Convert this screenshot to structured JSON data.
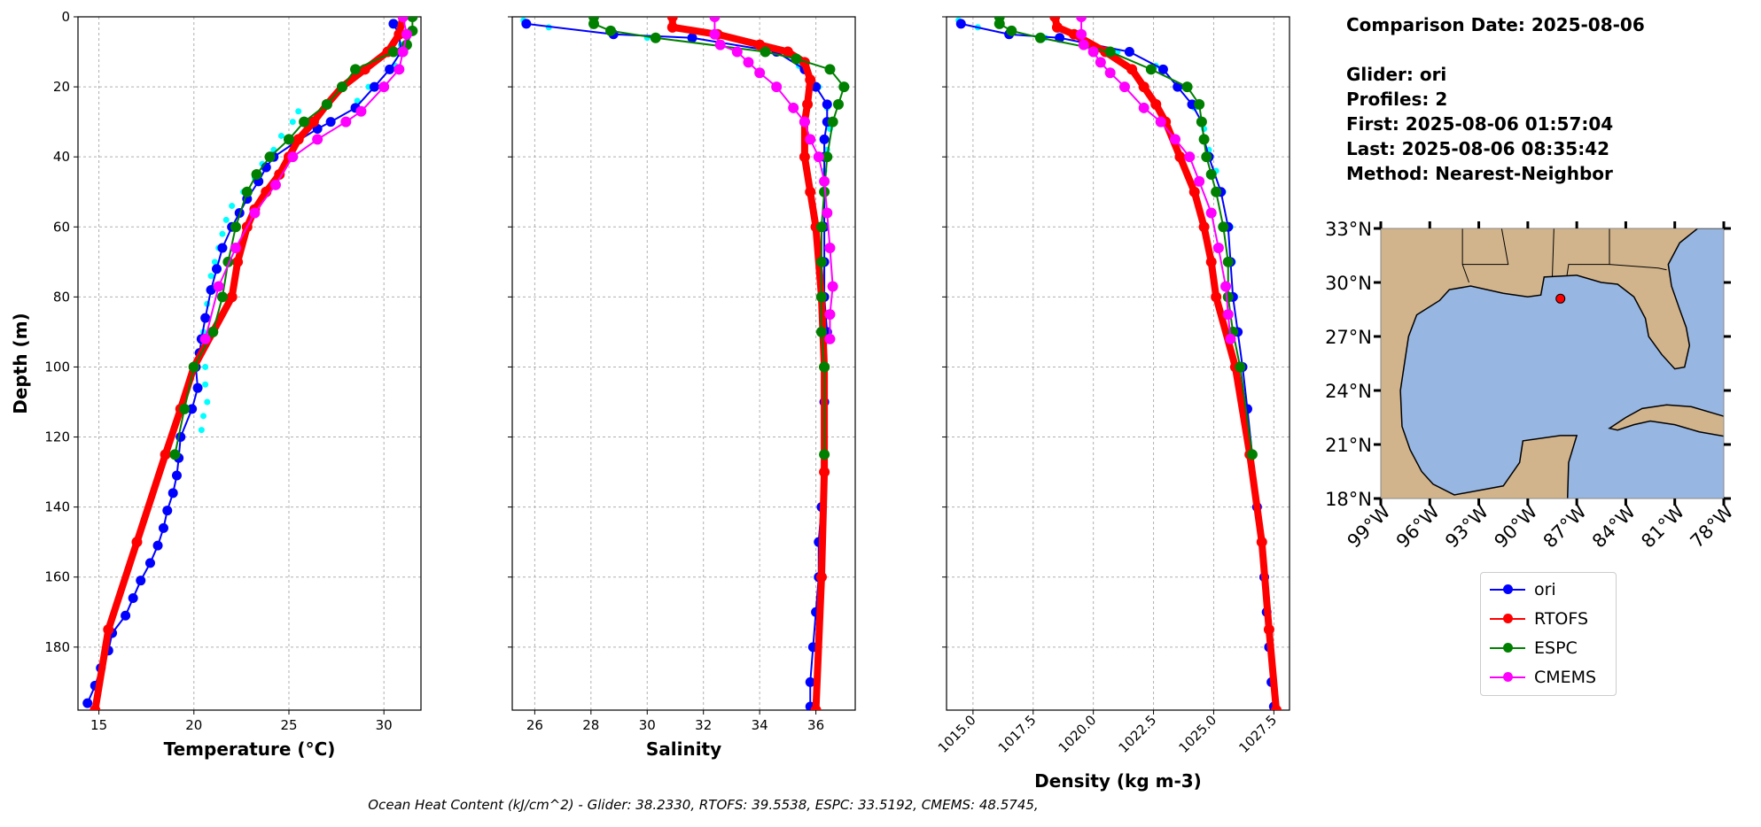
{
  "info": {
    "comparison_date": "Comparison Date: 2025-08-06",
    "glider": "Glider: ori",
    "profiles": "Profiles: 2",
    "first": "First: 2025-08-06 01:57:04",
    "last": "Last: 2025-08-06 08:35:42",
    "method": "Method: Nearest-Neighbor"
  },
  "footer": "Ocean Heat Content (kJ/cm^2) - Glider: 38.2330,  RTOFS: 39.5538,  ESPC: 33.5192,  CMEMS: 48.5745,",
  "colors": {
    "ori": "#0000ff",
    "glider_profile_2": "#00ffff",
    "RTOFS": "#ff0000",
    "ESPC": "#008000",
    "CMEMS": "#ff00ff",
    "land": "#d2b48c",
    "water": "#97b6e1"
  },
  "legend": [
    "ori",
    "RTOFS",
    "ESPC",
    "CMEMS"
  ],
  "chart_data": [
    {
      "type": "line",
      "xlabel": "Temperature (°C)",
      "ylabel": "Depth (m)",
      "xlim": [
        13.9,
        31.95
      ],
      "ylim": [
        198,
        0
      ],
      "y_inverted": true,
      "xticks": [
        15,
        20,
        25,
        30
      ],
      "yticks": [
        0,
        20,
        40,
        60,
        80,
        100,
        120,
        140,
        160,
        180
      ],
      "grid": true,
      "series": [
        {
          "key": "glider_profile_2",
          "style": "dots",
          "depth": [
            2,
            8,
            14,
            20,
            24,
            27,
            30,
            34,
            38,
            42,
            46,
            50,
            54,
            58,
            62,
            66,
            70,
            74,
            78,
            82,
            86,
            90,
            95,
            100,
            105,
            110,
            114,
            118
          ],
          "values": [
            30.8,
            30.9,
            30.6,
            29.2,
            28.6,
            25.5,
            25.2,
            24.6,
            24.2,
            23.6,
            23.2,
            22.6,
            22.0,
            21.7,
            21.5,
            21.3,
            21.1,
            20.9,
            20.8,
            20.7,
            20.6,
            20.5,
            20.5,
            20.6,
            20.6,
            20.7,
            20.5,
            20.4
          ]
        },
        {
          "name": "ori",
          "depth": [
            2,
            5,
            10,
            15,
            20,
            26,
            30,
            32,
            36,
            40,
            43,
            47,
            52,
            56,
            60,
            66,
            72,
            78,
            86,
            92,
            96,
            100,
            106,
            112,
            120,
            126,
            131,
            136,
            141,
            146,
            151,
            156,
            161,
            166,
            171,
            176,
            181,
            186,
            191,
            196
          ],
          "values": [
            30.5,
            30.8,
            30.9,
            30.3,
            29.5,
            28.5,
            27.2,
            26.5,
            25.3,
            24.2,
            23.8,
            23.4,
            22.8,
            22.4,
            22.0,
            21.5,
            21.2,
            20.9,
            20.6,
            20.4,
            20.3,
            20.1,
            20.2,
            19.9,
            19.3,
            19.2,
            19.1,
            18.9,
            18.6,
            18.4,
            18.1,
            17.7,
            17.2,
            16.8,
            16.4,
            15.7,
            15.5,
            15.1,
            14.8,
            14.4
          ]
        },
        {
          "name": "RTOFS",
          "depth": [
            0,
            5,
            10,
            15,
            20,
            25,
            30,
            35,
            40,
            45,
            50,
            55,
            60,
            70,
            80,
            90,
            100,
            112,
            125,
            150,
            175,
            198
          ],
          "values": [
            31.0,
            30.8,
            30.2,
            29.0,
            27.8,
            27.0,
            26.3,
            25.5,
            25.0,
            24.5,
            23.8,
            23.2,
            22.8,
            22.3,
            22.0,
            21.0,
            20.0,
            19.3,
            18.5,
            17.0,
            15.5,
            14.8
          ]
        },
        {
          "name": "ESPC",
          "depth": [
            0,
            4,
            8,
            10,
            15,
            20,
            25,
            30,
            35,
            40,
            45,
            50,
            60,
            70,
            80,
            90,
            100,
            112,
            125
          ],
          "values": [
            31.5,
            31.5,
            31.2,
            30.5,
            28.5,
            27.8,
            27.0,
            25.8,
            25.0,
            24.0,
            23.3,
            22.8,
            22.2,
            21.8,
            21.5,
            21.0,
            20.0,
            19.5,
            19.0
          ]
        },
        {
          "name": "CMEMS",
          "depth": [
            0,
            5,
            10,
            15,
            20,
            27,
            30,
            35,
            40,
            48,
            56,
            66,
            77,
            92
          ],
          "values": [
            31.0,
            31.2,
            31.0,
            30.8,
            30.0,
            28.8,
            28.0,
            26.5,
            25.2,
            24.3,
            23.2,
            22.2,
            21.3,
            20.6
          ]
        }
      ]
    },
    {
      "type": "line",
      "xlabel": "Salinity",
      "xlim": [
        25.2,
        37.4
      ],
      "ylim": [
        198,
        0
      ],
      "y_inverted": true,
      "xticks": [
        26,
        28,
        30,
        32,
        34,
        36
      ],
      "yticks": [
        0,
        20,
        40,
        60,
        80,
        100,
        120,
        140,
        160,
        180
      ],
      "grid": true,
      "series": [
        {
          "key": "glider_profile_2",
          "style": "dots",
          "depth": [
            1,
            3,
            6,
            10,
            14,
            20,
            26,
            32,
            38,
            44,
            50,
            60,
            70,
            80,
            90,
            100
          ],
          "values": [
            25.6,
            26.5,
            30.0,
            34.2,
            35.4,
            36.1,
            36.4,
            36.5,
            36.4,
            36.3,
            36.3,
            36.3,
            36.2,
            36.3,
            36.3,
            36.3
          ]
        },
        {
          "name": "ori",
          "depth": [
            2,
            5,
            6,
            10,
            15,
            20,
            25,
            30,
            35,
            40,
            50,
            60,
            70,
            80,
            90,
            100,
            110,
            125,
            140,
            150,
            160,
            170,
            180,
            190,
            197
          ],
          "values": [
            25.7,
            28.8,
            31.6,
            34.6,
            35.6,
            36.0,
            36.4,
            36.4,
            36.3,
            36.3,
            36.3,
            36.3,
            36.3,
            36.3,
            36.4,
            36.3,
            36.3,
            36.3,
            36.2,
            36.1,
            36.1,
            36.0,
            35.9,
            35.8,
            35.8
          ]
        },
        {
          "name": "RTOFS",
          "depth": [
            0,
            3,
            5,
            8,
            10,
            13,
            18,
            25,
            30,
            40,
            50,
            60,
            80,
            100,
            130,
            160,
            198
          ],
          "values": [
            30.9,
            30.9,
            32.5,
            34.0,
            35.0,
            35.6,
            35.8,
            35.7,
            35.6,
            35.6,
            35.8,
            36.0,
            36.2,
            36.3,
            36.3,
            36.2,
            36.0
          ]
        },
        {
          "name": "ESPC",
          "depth": [
            0,
            2,
            4,
            6,
            10,
            12,
            15,
            20,
            25,
            30,
            40,
            50,
            60,
            70,
            80,
            90,
            100,
            125
          ],
          "values": [
            28.1,
            28.1,
            28.7,
            30.3,
            34.2,
            35.3,
            36.5,
            37.0,
            36.8,
            36.6,
            36.4,
            36.3,
            36.2,
            36.2,
            36.2,
            36.2,
            36.3,
            36.3
          ]
        },
        {
          "name": "CMEMS",
          "depth": [
            0,
            5,
            8,
            10,
            13,
            16,
            20,
            26,
            30,
            35,
            40,
            47,
            56,
            66,
            77,
            85,
            92
          ],
          "values": [
            32.4,
            32.4,
            32.6,
            33.2,
            33.6,
            34.0,
            34.6,
            35.2,
            35.6,
            35.8,
            36.1,
            36.3,
            36.4,
            36.5,
            36.6,
            36.5,
            36.5
          ]
        }
      ]
    },
    {
      "type": "line",
      "xlabel": "Density (kg m-3)",
      "xlim": [
        1013.9,
        1028.15
      ],
      "ylim": [
        198,
        0
      ],
      "y_inverted": true,
      "xticks": [
        1015.0,
        1017.5,
        1020.0,
        1022.5,
        1025.0,
        1027.5
      ],
      "yticks": [
        0,
        20,
        40,
        60,
        80,
        100,
        120,
        140,
        160,
        180
      ],
      "grid": true,
      "series": [
        {
          "key": "glider_profile_2",
          "style": "dots",
          "depth": [
            1,
            3,
            6,
            10,
            14,
            20,
            26,
            32,
            38,
            44,
            50,
            60,
            70,
            80,
            90,
            100
          ],
          "values": [
            1014.4,
            1015.2,
            1018.0,
            1021.0,
            1022.6,
            1023.6,
            1024.2,
            1024.6,
            1024.8,
            1025.1,
            1025.4,
            1025.7,
            1025.8,
            1025.9,
            1026.0,
            1026.2
          ]
        },
        {
          "name": "ori",
          "depth": [
            2,
            5,
            6,
            10,
            15,
            20,
            25,
            30,
            35,
            40,
            50,
            60,
            70,
            80,
            90,
            100,
            112,
            125,
            140,
            150,
            160,
            170,
            180,
            190,
            197
          ],
          "values": [
            1014.5,
            1016.5,
            1018.6,
            1021.5,
            1022.9,
            1023.5,
            1024.1,
            1024.5,
            1024.6,
            1024.8,
            1025.3,
            1025.6,
            1025.7,
            1025.8,
            1026.0,
            1026.2,
            1026.4,
            1026.6,
            1026.8,
            1027.0,
            1027.1,
            1027.2,
            1027.3,
            1027.4,
            1027.5
          ]
        },
        {
          "name": "RTOFS",
          "depth": [
            0,
            3,
            5,
            10,
            15,
            20,
            25,
            30,
            40,
            50,
            60,
            70,
            80,
            100,
            125,
            150,
            175,
            198
          ],
          "values": [
            1018.4,
            1018.5,
            1019.2,
            1020.5,
            1021.6,
            1022.1,
            1022.6,
            1023.0,
            1023.6,
            1024.2,
            1024.6,
            1024.9,
            1025.1,
            1025.9,
            1026.5,
            1027.0,
            1027.3,
            1027.6
          ]
        },
        {
          "name": "ESPC",
          "depth": [
            0,
            2,
            4,
            6,
            10,
            15,
            20,
            25,
            30,
            35,
            40,
            45,
            50,
            60,
            70,
            80,
            90,
            100,
            125
          ],
          "values": [
            1016.1,
            1016.1,
            1016.6,
            1017.8,
            1020.7,
            1022.4,
            1023.9,
            1024.4,
            1024.5,
            1024.6,
            1024.7,
            1024.9,
            1025.1,
            1025.4,
            1025.6,
            1025.6,
            1025.8,
            1026.1,
            1026.6
          ]
        },
        {
          "name": "CMEMS",
          "depth": [
            0,
            5,
            8,
            10,
            13,
            16,
            20,
            26,
            30,
            35,
            40,
            47,
            56,
            66,
            77,
            85,
            92
          ],
          "values": [
            1019.5,
            1019.5,
            1019.6,
            1020.0,
            1020.3,
            1020.7,
            1021.3,
            1022.1,
            1022.8,
            1023.4,
            1024.0,
            1024.4,
            1024.9,
            1025.2,
            1025.5,
            1025.6,
            1025.7
          ]
        }
      ]
    },
    {
      "type": "map",
      "lon_range": [
        -99,
        -78
      ],
      "lat_range": [
        18,
        33
      ],
      "lat_ticks": [
        "18°N",
        "21°N",
        "24°N",
        "27°N",
        "30°N",
        "33°N"
      ],
      "lon_ticks": [
        "99°W",
        "96°W",
        "93°W",
        "90°W",
        "87°W",
        "84°W",
        "81°W",
        "78°W"
      ],
      "glider_position": {
        "lon": -88.0,
        "lat": 29.1
      }
    }
  ]
}
